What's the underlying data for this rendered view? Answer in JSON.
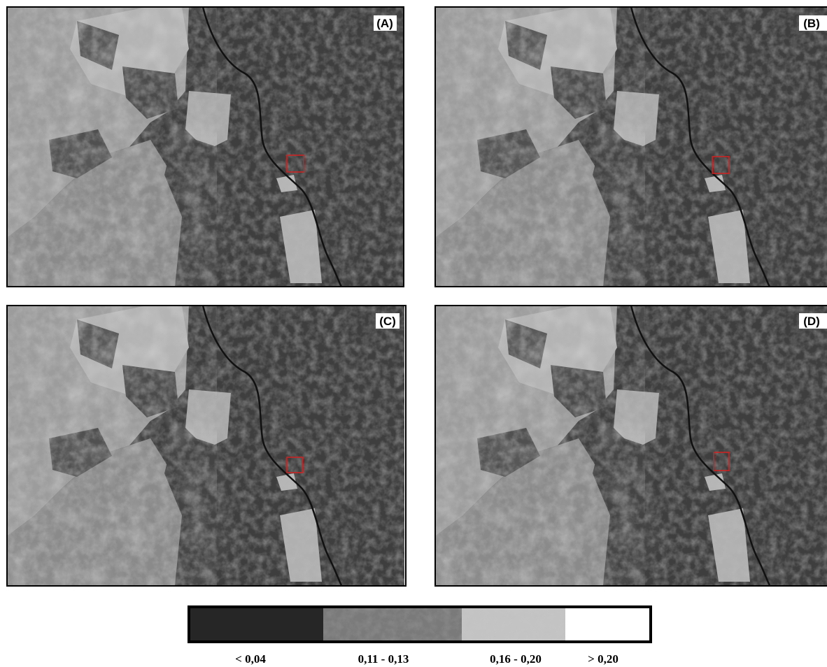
{
  "panels": [
    {
      "label": "(A)"
    },
    {
      "label": "(B)"
    },
    {
      "label": "(C)"
    },
    {
      "label": "(D)"
    }
  ],
  "legend": {
    "labels": [
      "< 0,04",
      "0,11 - 0,13",
      "0,16 - 0,20",
      "> 0,20"
    ]
  }
}
